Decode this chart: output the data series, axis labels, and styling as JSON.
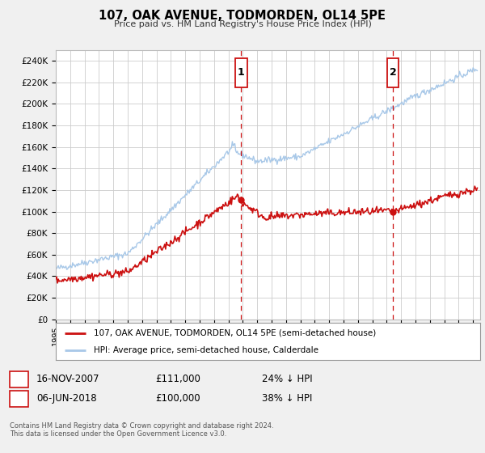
{
  "title": "107, OAK AVENUE, TODMORDEN, OL14 5PE",
  "subtitle": "Price paid vs. HM Land Registry's House Price Index (HPI)",
  "ylabel_ticks": [
    "£0",
    "£20K",
    "£40K",
    "£60K",
    "£80K",
    "£100K",
    "£120K",
    "£140K",
    "£160K",
    "£180K",
    "£200K",
    "£220K",
    "£240K"
  ],
  "ytick_values": [
    0,
    20000,
    40000,
    60000,
    80000,
    100000,
    120000,
    140000,
    160000,
    180000,
    200000,
    220000,
    240000
  ],
  "xmin": 1995.0,
  "xmax": 2024.5,
  "ymin": 0,
  "ymax": 250000,
  "hpi_color": "#a8c8e8",
  "price_color": "#cc1111",
  "marker1_date": 2007.88,
  "marker1_price": 111000,
  "marker1_label": "16-NOV-2007",
  "marker1_amount": "£111,000",
  "marker1_pct": "24% ↓ HPI",
  "marker2_date": 2018.43,
  "marker2_price": 100000,
  "marker2_label": "06-JUN-2018",
  "marker2_amount": "£100,000",
  "marker2_pct": "38% ↓ HPI",
  "legend_line1": "107, OAK AVENUE, TODMORDEN, OL14 5PE (semi-detached house)",
  "legend_line2": "HPI: Average price, semi-detached house, Calderdale",
  "footer": "Contains HM Land Registry data © Crown copyright and database right 2024.\nThis data is licensed under the Open Government Licence v3.0.",
  "background_color": "#f0f0f0",
  "plot_bg_color": "#ffffff",
  "grid_color": "#cccccc"
}
